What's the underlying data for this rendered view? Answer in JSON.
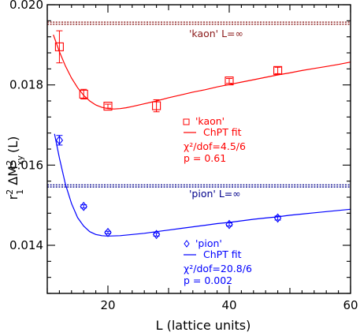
{
  "chart_data": {
    "type": "scatter",
    "xlabel": "L (lattice units)",
    "ylabel_main": "r",
    "ylabel_sup1": "2",
    "ylabel_sub1": "1",
    "ylabel_mid": " ΔM",
    "ylabel_sup2": "2",
    "ylabel_sub2": "xy",
    "ylabel_end": "(L)",
    "xlim": [
      10,
      60
    ],
    "ylim": [
      0.0128,
      0.02
    ],
    "xticks": [
      20,
      40,
      60
    ],
    "xtick_labels": [
      "20",
      "40",
      "60"
    ],
    "yticks": [
      0.014,
      0.016,
      0.018,
      0.02
    ],
    "ytick_labels": [
      "0.014",
      "0.016",
      "0.018",
      "0.020"
    ],
    "grid": false,
    "infinite_volume": {
      "kaon": {
        "value": 0.01954,
        "label": "'kaon' L=∞",
        "color": "#8b1a1a"
      },
      "pion": {
        "value": 0.01548,
        "label": "'pion' L=∞",
        "color": "#00008b"
      }
    },
    "series": [
      {
        "name": "'kaon'",
        "color": "#ff0000",
        "marker": "square",
        "x": [
          12,
          16,
          20,
          28,
          40,
          48
        ],
        "y": [
          0.01895,
          0.01777,
          0.01747,
          0.01748,
          0.0181,
          0.01836
        ],
        "err": [
          0.0004,
          0.00012,
          5e-05,
          0.00015,
          6e-05,
          8e-05
        ],
        "fit_label": "ChPT fit",
        "chi2_label": "χ²/dof=4.5/6",
        "p_label": "p = 0.61",
        "fit": {
          "x": [
            11,
            12,
            13,
            14,
            15,
            16,
            17,
            18,
            19,
            20,
            21,
            22,
            23,
            24,
            26,
            28,
            30,
            32,
            34,
            36,
            38,
            40,
            42,
            44,
            46,
            48,
            50,
            52,
            54,
            56,
            58,
            60
          ],
          "y": [
            0.01925,
            0.01883,
            0.01847,
            0.01817,
            0.01793,
            0.01774,
            0.0176,
            0.0175,
            0.01744,
            0.01741,
            0.0174,
            0.01741,
            0.01743,
            0.01746,
            0.01753,
            0.0176,
            0.01768,
            0.01775,
            0.01782,
            0.01788,
            0.01795,
            0.01801,
            0.01807,
            0.01813,
            0.01819,
            0.01825,
            0.0183,
            0.01836,
            0.01841,
            0.01846,
            0.01851,
            0.01857
          ]
        }
      },
      {
        "name": "'pion'",
        "color": "#0000ff",
        "marker": "diamond",
        "x": [
          12,
          16,
          20,
          28,
          40,
          48
        ],
        "y": [
          0.01662,
          0.01497,
          0.01432,
          0.01427,
          0.01452,
          0.01468
        ],
        "err": [
          0.00012,
          4e-05,
          3e-05,
          4e-05,
          4e-05,
          5e-05
        ],
        "fit_label": "ChPT fit",
        "chi2_label": "χ²/dof=20.8/6",
        "p_label": "p = 0.002",
        "fit": {
          "x": [
            11.2,
            12,
            13,
            14,
            15,
            16,
            17,
            18,
            19,
            20,
            22,
            24,
            26,
            28,
            30,
            32,
            34,
            36,
            38,
            40,
            42,
            44,
            46,
            48,
            50,
            52,
            54,
            56,
            58,
            60
          ],
          "y": [
            0.01678,
            0.01618,
            0.01552,
            0.01504,
            0.01469,
            0.01448,
            0.01434,
            0.01427,
            0.01424,
            0.01423,
            0.01424,
            0.01427,
            0.0143,
            0.01434,
            0.01438,
            0.01442,
            0.01446,
            0.0145,
            0.01454,
            0.01457,
            0.01461,
            0.01465,
            0.01468,
            0.01471,
            0.01475,
            0.01478,
            0.01481,
            0.01484,
            0.01487,
            0.0149
          ]
        }
      }
    ]
  }
}
